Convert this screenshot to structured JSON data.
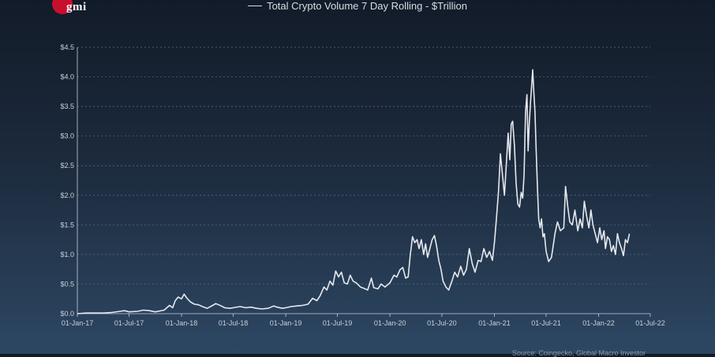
{
  "logo": {
    "text": "gmi",
    "color": "#c8102e"
  },
  "source": "Source: Coingecko, Global Macro Investor",
  "chart_data": {
    "type": "line",
    "title": "Total Crypto Volume 7 Day Rolling - $Trillion",
    "xlabel": "",
    "ylabel": "",
    "legend_position": "top-center",
    "grid": "horizontal dashed",
    "line_color": "#e6e9ee",
    "xlim": [
      "2017-01-01",
      "2022-07-01"
    ],
    "ylim": [
      0,
      4.5
    ],
    "x_ticks": [
      "01-Jan-17",
      "01-Jul-17",
      "01-Jan-18",
      "01-Jul-18",
      "01-Jan-19",
      "01-Jul-19",
      "01-Jan-20",
      "01-Jul-20",
      "01-Jan-21",
      "01-Jul-21",
      "01-Jan-22",
      "01-Jul-22"
    ],
    "y_ticks": [
      "$0.0",
      "$0.5",
      "$1.0",
      "$1.5",
      "$2.0",
      "$2.5",
      "$3.0",
      "$3.5",
      "$4.0",
      "$4.5"
    ],
    "series": [
      {
        "name": "Total Crypto Volume 7 Day Rolling - $Trillion",
        "points": [
          [
            "2017-01-01",
            0.0
          ],
          [
            "2017-02-01",
            0.01
          ],
          [
            "2017-03-01",
            0.01
          ],
          [
            "2017-04-01",
            0.01
          ],
          [
            "2017-05-01",
            0.02
          ],
          [
            "2017-06-01",
            0.04
          ],
          [
            "2017-06-15",
            0.05
          ],
          [
            "2017-07-01",
            0.03
          ],
          [
            "2017-08-01",
            0.04
          ],
          [
            "2017-08-20",
            0.06
          ],
          [
            "2017-09-10",
            0.05
          ],
          [
            "2017-10-01",
            0.03
          ],
          [
            "2017-11-01",
            0.06
          ],
          [
            "2017-11-20",
            0.14
          ],
          [
            "2017-12-01",
            0.1
          ],
          [
            "2017-12-10",
            0.22
          ],
          [
            "2017-12-20",
            0.28
          ],
          [
            "2018-01-01",
            0.25
          ],
          [
            "2018-01-10",
            0.33
          ],
          [
            "2018-01-20",
            0.26
          ],
          [
            "2018-02-01",
            0.2
          ],
          [
            "2018-02-15",
            0.16
          ],
          [
            "2018-03-01",
            0.15
          ],
          [
            "2018-03-15",
            0.12
          ],
          [
            "2018-04-01",
            0.09
          ],
          [
            "2018-04-20",
            0.14
          ],
          [
            "2018-05-01",
            0.17
          ],
          [
            "2018-05-20",
            0.13
          ],
          [
            "2018-06-01",
            0.1
          ],
          [
            "2018-06-20",
            0.09
          ],
          [
            "2018-07-01",
            0.1
          ],
          [
            "2018-07-25",
            0.12
          ],
          [
            "2018-08-15",
            0.1
          ],
          [
            "2018-09-01",
            0.11
          ],
          [
            "2018-09-20",
            0.09
          ],
          [
            "2018-10-10",
            0.08
          ],
          [
            "2018-11-01",
            0.09
          ],
          [
            "2018-11-20",
            0.13
          ],
          [
            "2018-12-01",
            0.11
          ],
          [
            "2018-12-20",
            0.09
          ],
          [
            "2019-01-01",
            0.1
          ],
          [
            "2019-01-20",
            0.12
          ],
          [
            "2019-02-10",
            0.13
          ],
          [
            "2019-03-01",
            0.14
          ],
          [
            "2019-03-20",
            0.16
          ],
          [
            "2019-04-05",
            0.26
          ],
          [
            "2019-04-20",
            0.22
          ],
          [
            "2019-05-01",
            0.3
          ],
          [
            "2019-05-15",
            0.45
          ],
          [
            "2019-05-25",
            0.4
          ],
          [
            "2019-06-05",
            0.55
          ],
          [
            "2019-06-15",
            0.48
          ],
          [
            "2019-06-25",
            0.72
          ],
          [
            "2019-07-05",
            0.62
          ],
          [
            "2019-07-15",
            0.7
          ],
          [
            "2019-07-25",
            0.52
          ],
          [
            "2019-08-05",
            0.5
          ],
          [
            "2019-08-15",
            0.65
          ],
          [
            "2019-08-25",
            0.55
          ],
          [
            "2019-09-05",
            0.52
          ],
          [
            "2019-09-20",
            0.45
          ],
          [
            "2019-10-01",
            0.43
          ],
          [
            "2019-10-15",
            0.4
          ],
          [
            "2019-10-28",
            0.6
          ],
          [
            "2019-11-05",
            0.44
          ],
          [
            "2019-11-20",
            0.42
          ],
          [
            "2019-12-01",
            0.5
          ],
          [
            "2019-12-15",
            0.45
          ],
          [
            "2020-01-01",
            0.52
          ],
          [
            "2020-01-15",
            0.65
          ],
          [
            "2020-01-25",
            0.62
          ],
          [
            "2020-02-05",
            0.74
          ],
          [
            "2020-02-15",
            0.78
          ],
          [
            "2020-02-25",
            0.6
          ],
          [
            "2020-03-05",
            0.62
          ],
          [
            "2020-03-12",
            0.98
          ],
          [
            "2020-03-20",
            1.3
          ],
          [
            "2020-03-28",
            1.2
          ],
          [
            "2020-04-05",
            1.25
          ],
          [
            "2020-04-12",
            1.1
          ],
          [
            "2020-04-20",
            1.25
          ],
          [
            "2020-04-28",
            1.0
          ],
          [
            "2020-05-05",
            1.18
          ],
          [
            "2020-05-12",
            0.95
          ],
          [
            "2020-05-20",
            1.1
          ],
          [
            "2020-05-28",
            1.25
          ],
          [
            "2020-06-05",
            1.32
          ],
          [
            "2020-06-12",
            1.15
          ],
          [
            "2020-06-20",
            0.9
          ],
          [
            "2020-06-28",
            0.75
          ],
          [
            "2020-07-05",
            0.55
          ],
          [
            "2020-07-15",
            0.45
          ],
          [
            "2020-07-25",
            0.4
          ],
          [
            "2020-08-05",
            0.55
          ],
          [
            "2020-08-15",
            0.7
          ],
          [
            "2020-08-25",
            0.62
          ],
          [
            "2020-09-05",
            0.8
          ],
          [
            "2020-09-15",
            0.65
          ],
          [
            "2020-09-25",
            0.75
          ],
          [
            "2020-10-05",
            1.1
          ],
          [
            "2020-10-15",
            0.85
          ],
          [
            "2020-10-25",
            0.7
          ],
          [
            "2020-11-05",
            0.9
          ],
          [
            "2020-11-15",
            0.88
          ],
          [
            "2020-11-25",
            1.1
          ],
          [
            "2020-12-05",
            0.95
          ],
          [
            "2020-12-15",
            1.05
          ],
          [
            "2020-12-25",
            0.9
          ],
          [
            "2021-01-01",
            1.2
          ],
          [
            "2021-01-08",
            1.6
          ],
          [
            "2021-01-15",
            2.05
          ],
          [
            "2021-01-22",
            2.7
          ],
          [
            "2021-01-30",
            2.3
          ],
          [
            "2021-02-05",
            2.0
          ],
          [
            "2021-02-12",
            2.55
          ],
          [
            "2021-02-18",
            3.05
          ],
          [
            "2021-02-24",
            2.6
          ],
          [
            "2021-03-01",
            3.2
          ],
          [
            "2021-03-06",
            3.25
          ],
          [
            "2021-03-12",
            2.85
          ],
          [
            "2021-03-18",
            2.2
          ],
          [
            "2021-03-24",
            1.85
          ],
          [
            "2021-03-30",
            1.8
          ],
          [
            "2021-04-05",
            2.05
          ],
          [
            "2021-04-10",
            1.95
          ],
          [
            "2021-04-15",
            2.35
          ],
          [
            "2021-04-20",
            3.4
          ],
          [
            "2021-04-25",
            3.7
          ],
          [
            "2021-04-29",
            2.75
          ],
          [
            "2021-05-03",
            3.2
          ],
          [
            "2021-05-08",
            3.6
          ],
          [
            "2021-05-12",
            3.9
          ],
          [
            "2021-05-15",
            4.12
          ],
          [
            "2021-05-19",
            3.75
          ],
          [
            "2021-05-23",
            3.4
          ],
          [
            "2021-05-27",
            2.8
          ],
          [
            "2021-06-01",
            2.1
          ],
          [
            "2021-06-05",
            1.6
          ],
          [
            "2021-06-10",
            1.45
          ],
          [
            "2021-06-15",
            1.6
          ],
          [
            "2021-06-20",
            1.3
          ],
          [
            "2021-06-25",
            1.35
          ],
          [
            "2021-07-01",
            1.05
          ],
          [
            "2021-07-10",
            0.88
          ],
          [
            "2021-07-20",
            0.95
          ],
          [
            "2021-08-01",
            1.35
          ],
          [
            "2021-08-10",
            1.55
          ],
          [
            "2021-08-20",
            1.4
          ],
          [
            "2021-09-01",
            1.45
          ],
          [
            "2021-09-07",
            2.15
          ],
          [
            "2021-09-15",
            1.8
          ],
          [
            "2021-09-22",
            1.55
          ],
          [
            "2021-10-01",
            1.5
          ],
          [
            "2021-10-10",
            1.75
          ],
          [
            "2021-10-20",
            1.4
          ],
          [
            "2021-10-28",
            1.6
          ],
          [
            "2021-11-05",
            1.45
          ],
          [
            "2021-11-12",
            1.9
          ],
          [
            "2021-11-20",
            1.65
          ],
          [
            "2021-11-28",
            1.45
          ],
          [
            "2021-12-05",
            1.75
          ],
          [
            "2021-12-12",
            1.5
          ],
          [
            "2021-12-20",
            1.35
          ],
          [
            "2021-12-28",
            1.2
          ],
          [
            "2022-01-05",
            1.45
          ],
          [
            "2022-01-12",
            1.25
          ],
          [
            "2022-01-20",
            1.4
          ],
          [
            "2022-01-25",
            1.1
          ],
          [
            "2022-02-01",
            1.3
          ],
          [
            "2022-02-08",
            1.25
          ],
          [
            "2022-02-15",
            1.05
          ],
          [
            "2022-02-22",
            1.15
          ],
          [
            "2022-03-01",
            1.0
          ],
          [
            "2022-03-08",
            1.35
          ],
          [
            "2022-03-15",
            1.2
          ],
          [
            "2022-03-22",
            1.1
          ],
          [
            "2022-03-29",
            0.98
          ],
          [
            "2022-04-05",
            1.25
          ],
          [
            "2022-04-12",
            1.2
          ],
          [
            "2022-04-19",
            1.35
          ]
        ]
      }
    ]
  }
}
